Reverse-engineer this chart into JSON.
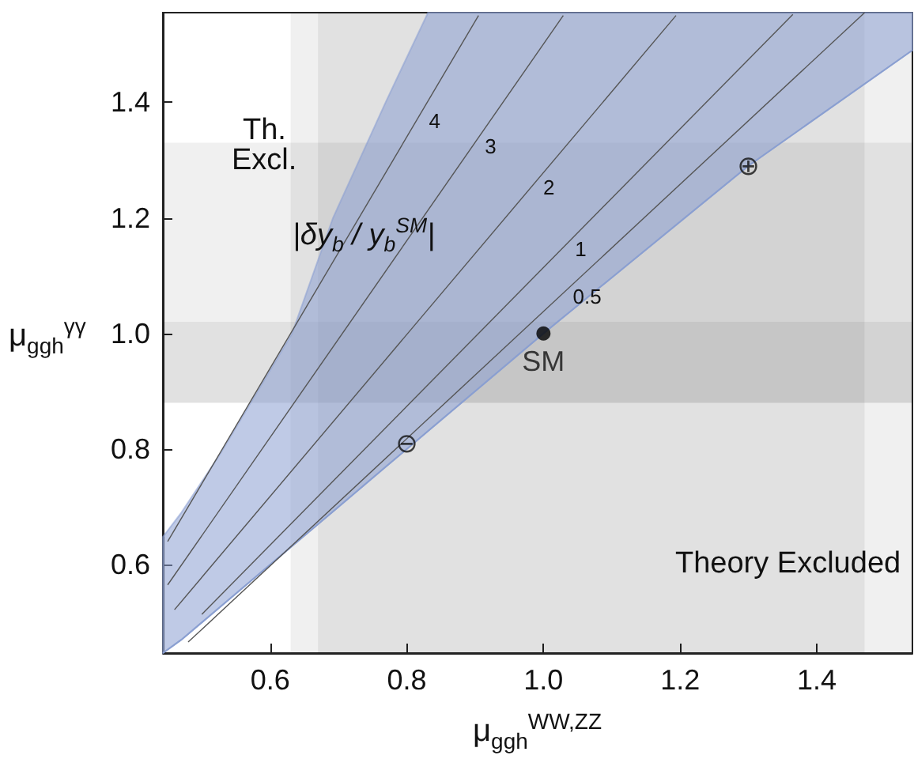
{
  "chart_data": {
    "type": "line",
    "xlabel": "μ$_{ggh}$$^{WW,ZZ}$",
    "ylabel": "μ$_{ggh}$$^{γγ}$",
    "xlim": [
      0.443,
      1.54
    ],
    "ylim": [
      0.447,
      1.555
    ],
    "xticks": [
      {
        "value": 0.6,
        "label": "0.6"
      },
      {
        "value": 0.8,
        "label": "0.8"
      },
      {
        "value": 1,
        "label": "1.0"
      },
      {
        "value": 1.2,
        "label": "1.2"
      },
      {
        "value": 1.4,
        "label": "1.4"
      }
    ],
    "yticks": [
      {
        "value": 0.6,
        "label": "0.6"
      },
      {
        "value": 0.8,
        "label": "0.8"
      },
      {
        "value": 1,
        "label": "1.0"
      },
      {
        "value": 1.2,
        "label": "1.2"
      },
      {
        "value": 1.4,
        "label": "1.4"
      }
    ],
    "grid": false,
    "legend": false,
    "marker": "none",
    "line_style": "solid",
    "bands": [
      {
        "axis": "x",
        "from": 0.63,
        "to": 1.54
      },
      {
        "axis": "x",
        "from": 0.67,
        "to": 1.47
      },
      {
        "axis": "y",
        "from": 0.88,
        "to": 1.33
      },
      {
        "axis": "y",
        "from": 0.88,
        "to": 1.02
      }
    ],
    "series": [
      {
        "color": "#8a9fd1",
        "x": [
          0.443,
          0.47,
          0.526,
          0.632,
          0.692,
          0.769,
          0.831,
          1.0,
          1.3,
          1.54
        ],
        "values": [
          0.447,
          0.47,
          0.526,
          0.632,
          0.692,
          0.769,
          0.831,
          1.0,
          1.29,
          1.49
        ],
        "lower": [
          0.447,
          0.47,
          0.526,
          0.632,
          0.692,
          0.769,
          0.831,
          1.0,
          1.29,
          1.49
        ],
        "upper": [
          0.648,
          0.69,
          0.79,
          1.0,
          1.2,
          1.4,
          1.555,
          1.555,
          1.555,
          1.555
        ]
      },
      {
        "name": "0.5",
        "color": "#555555",
        "x": [
          0.48,
          1.47
        ],
        "values": [
          0.466,
          1.555
        ]
      },
      {
        "name": "1",
        "color": "#555555",
        "x": [
          0.5,
          1.365
        ],
        "values": [
          0.514,
          1.552
        ]
      },
      {
        "name": "2",
        "color": "#555555",
        "x": [
          0.46,
          1.194
        ],
        "values": [
          0.522,
          1.55
        ]
      },
      {
        "name": "3",
        "color": "#555555",
        "x": [
          0.45,
          1.029
        ],
        "values": [
          0.565,
          1.55
        ]
      },
      {
        "name": "4",
        "color": "#555555",
        "x": [
          0.45,
          0.905
        ],
        "values": [
          0.64,
          1.55
        ]
      },
      {
        "type": "scatter",
        "name": "SM",
        "marker": "circle",
        "color": "#000000",
        "x": [
          1.0
        ],
        "values": [
          1.0
        ]
      }
    ],
    "annotations": [
      "|δy$_{b}$ / y$_{b}$$^{SM}$|",
      {
        "text": "⊕",
        "x": 1.3,
        "y": 1.29
      },
      {
        "text": "⊖",
        "x": 0.8,
        "y": 0.81
      },
      "Th.",
      "Excl.",
      "Theory Excluded"
    ]
  }
}
